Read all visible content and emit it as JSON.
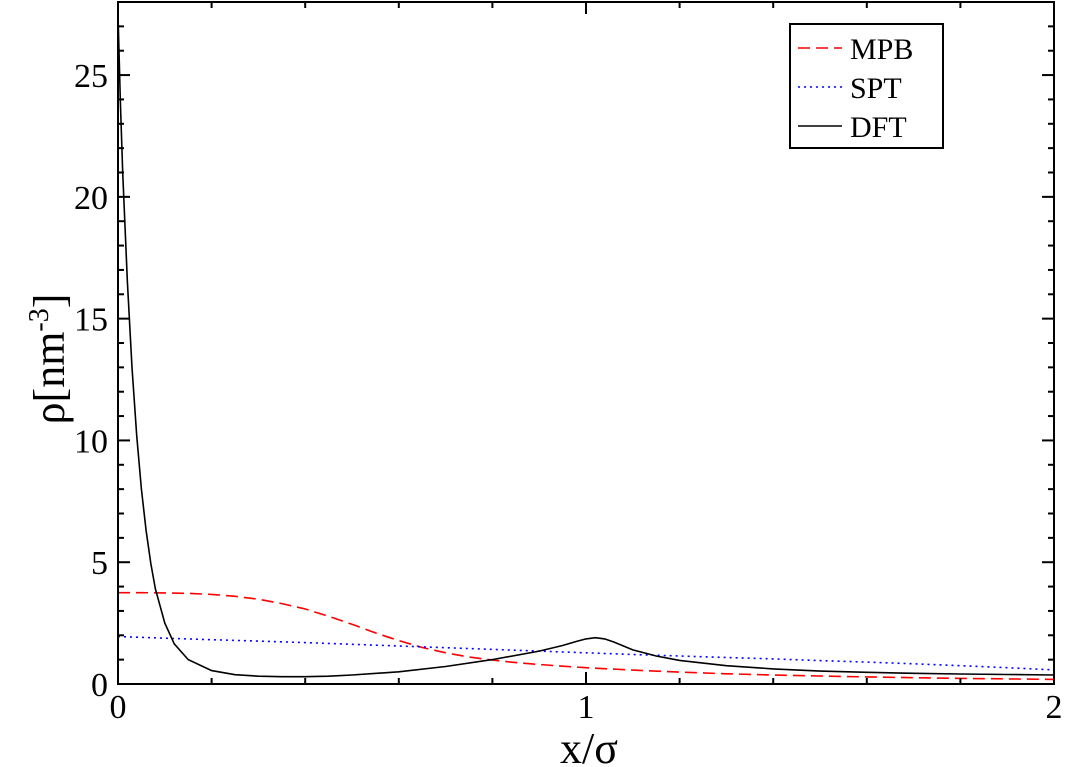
{
  "chart_data": {
    "type": "line",
    "xlabel": "x/σ",
    "ylabel": "ρ[nm",
    "ylabel_superscript": "-3",
    "ylabel_suffix": "]",
    "xlim": [
      0,
      2
    ],
    "ylim": [
      0,
      28
    ],
    "grid": false,
    "legend_position": "top-right",
    "x_ticks": [
      0,
      1,
      2
    ],
    "x_minor_step": 0.2,
    "y_ticks": [
      0,
      5,
      10,
      15,
      20,
      25
    ],
    "y_minor_step": 1,
    "series": [
      {
        "name": "MPB",
        "color": "#ff0000",
        "dash": "dashed",
        "points": [
          [
            0,
            3.75
          ],
          [
            0.05,
            3.75
          ],
          [
            0.1,
            3.74
          ],
          [
            0.15,
            3.72
          ],
          [
            0.2,
            3.68
          ],
          [
            0.25,
            3.6
          ],
          [
            0.3,
            3.48
          ],
          [
            0.35,
            3.3
          ],
          [
            0.4,
            3.08
          ],
          [
            0.45,
            2.78
          ],
          [
            0.5,
            2.45
          ],
          [
            0.55,
            2.1
          ],
          [
            0.6,
            1.78
          ],
          [
            0.65,
            1.5
          ],
          [
            0.7,
            1.28
          ],
          [
            0.75,
            1.11
          ],
          [
            0.8,
            0.98
          ],
          [
            0.85,
            0.88
          ],
          [
            0.9,
            0.8
          ],
          [
            0.95,
            0.73
          ],
          [
            1.0,
            0.67
          ],
          [
            1.1,
            0.57
          ],
          [
            1.2,
            0.49
          ],
          [
            1.3,
            0.42
          ],
          [
            1.4,
            0.37
          ],
          [
            1.5,
            0.33
          ],
          [
            1.6,
            0.29
          ],
          [
            1.7,
            0.26
          ],
          [
            1.8,
            0.23
          ],
          [
            1.9,
            0.21
          ],
          [
            2.0,
            0.19
          ]
        ]
      },
      {
        "name": "SPT",
        "color": "#0000ff",
        "dash": "dotted",
        "points": [
          [
            0,
            1.95
          ],
          [
            0.1,
            1.88
          ],
          [
            0.2,
            1.82
          ],
          [
            0.3,
            1.76
          ],
          [
            0.4,
            1.7
          ],
          [
            0.5,
            1.63
          ],
          [
            0.6,
            1.56
          ],
          [
            0.7,
            1.49
          ],
          [
            0.8,
            1.42
          ],
          [
            0.9,
            1.35
          ],
          [
            1.0,
            1.28
          ],
          [
            1.1,
            1.21
          ],
          [
            1.2,
            1.15
          ],
          [
            1.3,
            1.09
          ],
          [
            1.4,
            1.03
          ],
          [
            1.5,
            0.96
          ],
          [
            1.6,
            0.9
          ],
          [
            1.7,
            0.83
          ],
          [
            1.8,
            0.75
          ],
          [
            1.9,
            0.67
          ],
          [
            2.0,
            0.58
          ]
        ]
      },
      {
        "name": "DFT",
        "color": "#000000",
        "dash": "solid",
        "points": [
          [
            0,
            27.5
          ],
          [
            0.005,
            24.0
          ],
          [
            0.01,
            21.0
          ],
          [
            0.02,
            16.5
          ],
          [
            0.03,
            13.0
          ],
          [
            0.04,
            10.2
          ],
          [
            0.05,
            8.0
          ],
          [
            0.06,
            6.3
          ],
          [
            0.07,
            4.95
          ],
          [
            0.08,
            3.9
          ],
          [
            0.1,
            2.5
          ],
          [
            0.12,
            1.65
          ],
          [
            0.15,
            1.0
          ],
          [
            0.2,
            0.55
          ],
          [
            0.25,
            0.38
          ],
          [
            0.3,
            0.32
          ],
          [
            0.35,
            0.3
          ],
          [
            0.4,
            0.3
          ],
          [
            0.45,
            0.32
          ],
          [
            0.5,
            0.37
          ],
          [
            0.6,
            0.5
          ],
          [
            0.7,
            0.72
          ],
          [
            0.8,
            1.0
          ],
          [
            0.9,
            1.35
          ],
          [
            0.95,
            1.58
          ],
          [
            0.98,
            1.75
          ],
          [
            1.0,
            1.85
          ],
          [
            1.02,
            1.9
          ],
          [
            1.04,
            1.85
          ],
          [
            1.06,
            1.72
          ],
          [
            1.1,
            1.4
          ],
          [
            1.15,
            1.15
          ],
          [
            1.2,
            0.97
          ],
          [
            1.3,
            0.75
          ],
          [
            1.4,
            0.62
          ],
          [
            1.5,
            0.53
          ],
          [
            1.6,
            0.48
          ],
          [
            1.7,
            0.44
          ],
          [
            1.8,
            0.41
          ],
          [
            1.9,
            0.39
          ],
          [
            2.0,
            0.37
          ]
        ]
      }
    ]
  }
}
